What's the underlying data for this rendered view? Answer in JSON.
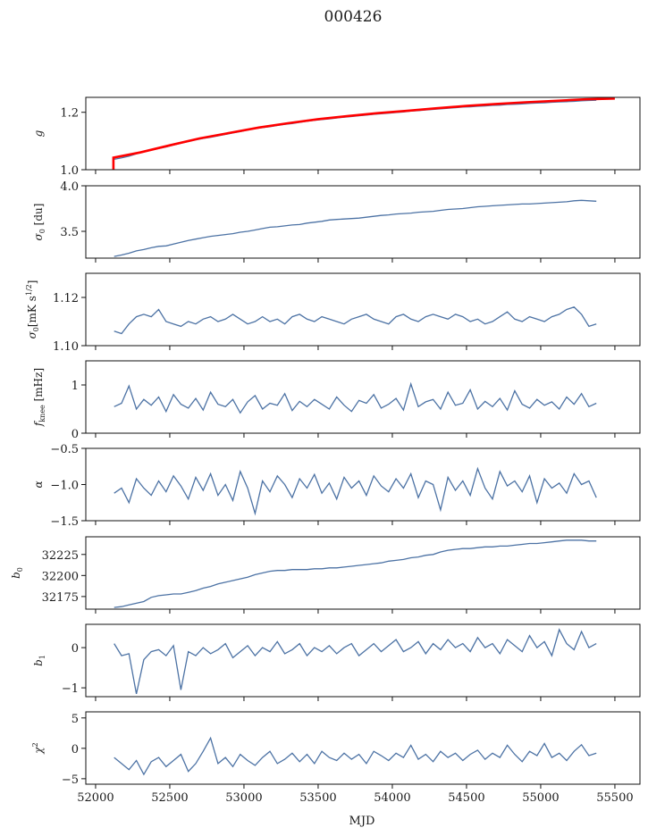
{
  "chart_data": {
    "type": "line",
    "title": "000426",
    "xlabel": "MJD",
    "xlim": [
      51934,
      55669
    ],
    "xticks": [
      52000,
      52500,
      53000,
      53500,
      54000,
      54500,
      55000,
      55500
    ],
    "xtick_labels": [
      "52000",
      "52500",
      "53000",
      "53500",
      "54000",
      "54500",
      "55000",
      "55500"
    ],
    "x_start": 52125,
    "x_step": 50,
    "grid": false,
    "line_color": "#4c72a4",
    "fit_color": "#ff0000",
    "panels": [
      {
        "name": "g",
        "ylabel": {
          "main": "g",
          "sub": "",
          "rest": "",
          "sup": ""
        },
        "ylim": [
          1.0,
          1.252
        ],
        "yticks": [
          1.0,
          1.2
        ],
        "ytick_labels": [
          "1.0",
          "1.2"
        ],
        "values": [
          1.036,
          1.041,
          1.047,
          1.055,
          1.062,
          1.068,
          1.074,
          1.079,
          1.086,
          1.092,
          1.098,
          1.104,
          1.109,
          1.113,
          1.118,
          1.123,
          1.128,
          1.133,
          1.138,
          1.143,
          1.147,
          1.15,
          1.154,
          1.158,
          1.161,
          1.165,
          1.169,
          1.172,
          1.175,
          1.177,
          1.18,
          1.183,
          1.185,
          1.188,
          1.19,
          1.193,
          1.195,
          1.197,
          1.199,
          1.201,
          1.204,
          1.206,
          1.208,
          1.21,
          1.212,
          1.214,
          1.216,
          1.218,
          1.219,
          1.221,
          1.222,
          1.224,
          1.225,
          1.227,
          1.228,
          1.229,
          1.231,
          1.232,
          1.233,
          1.235,
          1.236,
          1.237,
          1.238,
          1.24,
          1.241,
          1.242
        ],
        "fit": {
          "x": [
            52120,
            52120,
            52300,
            52500,
            52700,
            52900,
            53100,
            53300,
            53500,
            53700,
            53900,
            54100,
            54300,
            54500,
            54700,
            54900,
            55100,
            55300,
            55500
          ],
          "values": [
            1.0,
            1.042,
            1.06,
            1.085,
            1.109,
            1.128,
            1.147,
            1.162,
            1.176,
            1.187,
            1.197,
            1.205,
            1.214,
            1.222,
            1.229,
            1.235,
            1.24,
            1.245,
            1.248
          ]
        }
      },
      {
        "name": "sigma0-du",
        "ylabel": {
          "main": "σ",
          "sub": "0",
          "rest": " [du]",
          "sup": ""
        },
        "ylim": [
          3.206,
          4.0
        ],
        "yticks": [
          3.5,
          4.0
        ],
        "ytick_labels": [
          "3.5",
          "4.0"
        ],
        "values": [
          3.225,
          3.24,
          3.26,
          3.285,
          3.3,
          3.32,
          3.335,
          3.34,
          3.36,
          3.38,
          3.4,
          3.415,
          3.43,
          3.445,
          3.455,
          3.465,
          3.475,
          3.49,
          3.5,
          3.515,
          3.53,
          3.545,
          3.55,
          3.56,
          3.57,
          3.575,
          3.59,
          3.6,
          3.61,
          3.625,
          3.63,
          3.635,
          3.64,
          3.645,
          3.655,
          3.665,
          3.675,
          3.68,
          3.69,
          3.695,
          3.7,
          3.71,
          3.715,
          3.72,
          3.73,
          3.74,
          3.745,
          3.75,
          3.76,
          3.77,
          3.775,
          3.78,
          3.785,
          3.79,
          3.795,
          3.8,
          3.8,
          3.805,
          3.81,
          3.815,
          3.82,
          3.825,
          3.835,
          3.84,
          3.835,
          3.83
        ]
      },
      {
        "name": "sigma0-mK",
        "ylabel": {
          "main": "σ",
          "sub": "0",
          "rest": "[mK s",
          "sup": "1/2",
          "close": "]"
        },
        "ylim": [
          1.1,
          1.13
        ],
        "yticks": [
          1.1,
          1.12
        ],
        "ytick_labels": [
          "1.10",
          "1.12"
        ],
        "values": [
          1.106,
          1.105,
          1.109,
          1.112,
          1.113,
          1.112,
          1.115,
          1.11,
          1.109,
          1.108,
          1.11,
          1.109,
          1.111,
          1.112,
          1.11,
          1.111,
          1.113,
          1.111,
          1.109,
          1.11,
          1.112,
          1.11,
          1.111,
          1.109,
          1.112,
          1.113,
          1.111,
          1.11,
          1.112,
          1.111,
          1.11,
          1.109,
          1.111,
          1.112,
          1.113,
          1.111,
          1.11,
          1.109,
          1.112,
          1.113,
          1.111,
          1.11,
          1.112,
          1.113,
          1.112,
          1.111,
          1.113,
          1.112,
          1.11,
          1.111,
          1.109,
          1.11,
          1.112,
          1.114,
          1.111,
          1.11,
          1.112,
          1.111,
          1.11,
          1.112,
          1.113,
          1.115,
          1.116,
          1.113,
          1.108,
          1.109
        ]
      },
      {
        "name": "fknee",
        "ylabel": {
          "main": "f",
          "sub": "knee",
          "rest": " [mHz]",
          "sup": ""
        },
        "ylim": [
          0,
          1.5
        ],
        "yticks": [
          0,
          1
        ],
        "ytick_labels": [
          "0",
          "1"
        ],
        "values": [
          0.55,
          0.62,
          0.98,
          0.5,
          0.7,
          0.58,
          0.75,
          0.45,
          0.8,
          0.6,
          0.52,
          0.72,
          0.48,
          0.85,
          0.6,
          0.55,
          0.7,
          0.42,
          0.65,
          0.78,
          0.5,
          0.62,
          0.58,
          0.82,
          0.47,
          0.66,
          0.55,
          0.7,
          0.6,
          0.5,
          0.75,
          0.58,
          0.45,
          0.68,
          0.62,
          0.8,
          0.52,
          0.6,
          0.72,
          0.48,
          1.02,
          0.55,
          0.65,
          0.7,
          0.5,
          0.85,
          0.58,
          0.62,
          0.9,
          0.5,
          0.66,
          0.55,
          0.72,
          0.48,
          0.88,
          0.6,
          0.52,
          0.7,
          0.58,
          0.65,
          0.5,
          0.75,
          0.6,
          0.82,
          0.55,
          0.62
        ]
      },
      {
        "name": "alpha",
        "ylabel": {
          "main": "α",
          "sub": "",
          "rest": "",
          "sup": ""
        },
        "ylim": [
          -1.5,
          -0.5
        ],
        "yticks": [
          -1.5,
          -1.0,
          -0.5
        ],
        "ytick_labels": [
          "−1.5",
          "−1.0",
          "−0.5"
        ],
        "values": [
          -1.12,
          -1.05,
          -1.25,
          -0.92,
          -1.05,
          -1.15,
          -0.95,
          -1.1,
          -0.88,
          -1.02,
          -1.2,
          -0.9,
          -1.08,
          -0.85,
          -1.15,
          -1.0,
          -1.22,
          -0.82,
          -1.05,
          -1.4,
          -0.95,
          -1.1,
          -0.88,
          -1.0,
          -1.18,
          -0.92,
          -1.05,
          -0.86,
          -1.12,
          -0.98,
          -1.2,
          -0.9,
          -1.05,
          -0.95,
          -1.15,
          -0.88,
          -1.02,
          -1.1,
          -0.92,
          -1.05,
          -0.85,
          -1.18,
          -0.95,
          -1.0,
          -1.35,
          -0.9,
          -1.08,
          -0.95,
          -1.15,
          -0.78,
          -1.05,
          -1.2,
          -0.82,
          -1.02,
          -0.95,
          -1.1,
          -0.88,
          -1.25,
          -0.92,
          -1.05,
          -0.98,
          -1.12,
          -0.85,
          -1.0,
          -0.95,
          -1.18
        ]
      },
      {
        "name": "b0",
        "ylabel": {
          "main": "b",
          "sub": "0",
          "rest": "",
          "sup": ""
        },
        "ylim": [
          32160,
          32246
        ],
        "yticks": [
          32175,
          32200,
          32225
        ],
        "ytick_labels": [
          "32175",
          "32200",
          "32225"
        ],
        "values": [
          32162,
          32163,
          32165,
          32167,
          32169,
          32174,
          32176,
          32177,
          32178,
          32178,
          32180,
          32182,
          32185,
          32187,
          32190,
          32192,
          32194,
          32196,
          32198,
          32201,
          32203,
          32205,
          32206,
          32206,
          32207,
          32207,
          32207,
          32208,
          32208,
          32209,
          32209,
          32210,
          32211,
          32212,
          32213,
          32214,
          32215,
          32217,
          32218,
          32219,
          32221,
          32222,
          32224,
          32225,
          32228,
          32230,
          32231,
          32232,
          32232,
          32233,
          32234,
          32234,
          32235,
          32235,
          32236,
          32237,
          32238,
          32238,
          32239,
          32240,
          32241,
          32242,
          32242,
          32242,
          32241,
          32241
        ]
      },
      {
        "name": "b1",
        "ylabel": {
          "main": "b",
          "sub": "1",
          "rest": "",
          "sup": ""
        },
        "ylim": [
          -1.22,
          0.58
        ],
        "yticks": [
          -1,
          0
        ],
        "ytick_labels": [
          "−1",
          "0"
        ],
        "values": [
          0.1,
          -0.2,
          -0.15,
          -1.15,
          -0.3,
          -0.1,
          -0.05,
          -0.2,
          0.05,
          -1.05,
          -0.1,
          -0.2,
          0.0,
          -0.15,
          -0.05,
          0.1,
          -0.25,
          -0.1,
          0.05,
          -0.2,
          0.0,
          -0.1,
          0.15,
          -0.15,
          -0.05,
          0.1,
          -0.2,
          0.0,
          -0.1,
          0.05,
          -0.15,
          0.0,
          0.1,
          -0.2,
          -0.05,
          0.1,
          -0.1,
          0.05,
          0.2,
          -0.1,
          0.0,
          0.15,
          -0.15,
          0.1,
          -0.05,
          0.2,
          0.0,
          0.1,
          -0.1,
          0.25,
          0.0,
          0.1,
          -0.15,
          0.2,
          0.05,
          -0.1,
          0.3,
          0.0,
          0.15,
          -0.2,
          0.45,
          0.1,
          -0.05,
          0.4,
          0.0,
          0.1
        ]
      },
      {
        "name": "chi2",
        "ylabel": {
          "main": "χ",
          "sub": "",
          "rest": "",
          "sup": "2"
        },
        "ylim": [
          -5.9,
          6.0
        ],
        "yticks": [
          -5,
          0,
          5
        ],
        "ytick_labels": [
          "−5",
          "0",
          "5"
        ],
        "values": [
          -1.5,
          -2.5,
          -3.5,
          -2.0,
          -4.3,
          -2.2,
          -1.5,
          -3.0,
          -2.0,
          -1.0,
          -3.8,
          -2.5,
          -0.5,
          1.7,
          -2.5,
          -1.5,
          -3.0,
          -1.0,
          -2.0,
          -2.8,
          -1.5,
          -0.5,
          -2.5,
          -1.8,
          -0.8,
          -2.2,
          -1.0,
          -2.5,
          -0.5,
          -1.5,
          -2.0,
          -0.8,
          -1.8,
          -1.0,
          -2.5,
          -0.5,
          -1.2,
          -2.0,
          -0.8,
          -1.5,
          0.5,
          -1.8,
          -1.0,
          -2.2,
          -0.5,
          -1.5,
          -0.8,
          -2.0,
          -1.0,
          -0.3,
          -1.8,
          -0.8,
          -1.5,
          0.5,
          -1.0,
          -2.2,
          -0.5,
          -1.2,
          0.8,
          -1.5,
          -0.8,
          -2.0,
          -0.5,
          0.6,
          -1.2,
          -0.8
        ]
      }
    ]
  }
}
